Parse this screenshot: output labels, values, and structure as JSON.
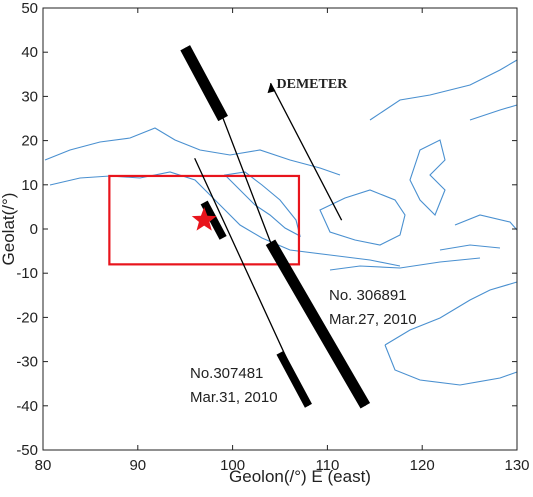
{
  "chart_data": {
    "type": "map",
    "xlabel": "Geolon(/°)  E (east)",
    "ylabel": "Geolat(/°)",
    "xlim": [
      80,
      130
    ],
    "ylim": [
      -50,
      50
    ],
    "xticks": [
      80,
      90,
      100,
      110,
      120,
      130
    ],
    "yticks": [
      -50,
      -40,
      -30,
      -20,
      -10,
      0,
      10,
      20,
      30,
      40,
      50
    ],
    "region": {
      "x": [
        87,
        107
      ],
      "y": [
        -8,
        12
      ],
      "color": "#e8141c"
    },
    "epicenter": {
      "x": 97,
      "y": 2,
      "color": "#e8141c"
    },
    "tracks": [
      {
        "name": "No. 306891",
        "date": "Mar.27, 2010",
        "x": [
          95,
          99,
          104,
          114
        ],
        "y": [
          41,
          25,
          -3,
          -40
        ],
        "thick": [
          {
            "x": [
              95,
              99
            ],
            "y": [
              41,
              25
            ]
          },
          {
            "x": [
              104,
              114
            ],
            "y": [
              -3,
              -40
            ]
          }
        ]
      },
      {
        "name": "No.307481",
        "date": "Mar.31, 2010",
        "x": [
          96,
          108
        ],
        "y": [
          16,
          -40
        ],
        "thick": [
          {
            "x": [
              97,
              99
            ],
            "y": [
              6,
              -2
            ]
          },
          {
            "x": [
              105,
              108
            ],
            "y": [
              -28,
              -40
            ]
          }
        ]
      }
    ],
    "arrow": {
      "label": "DEMETER",
      "x": [
        111.5,
        104
      ],
      "y": [
        2,
        33
      ]
    }
  }
}
